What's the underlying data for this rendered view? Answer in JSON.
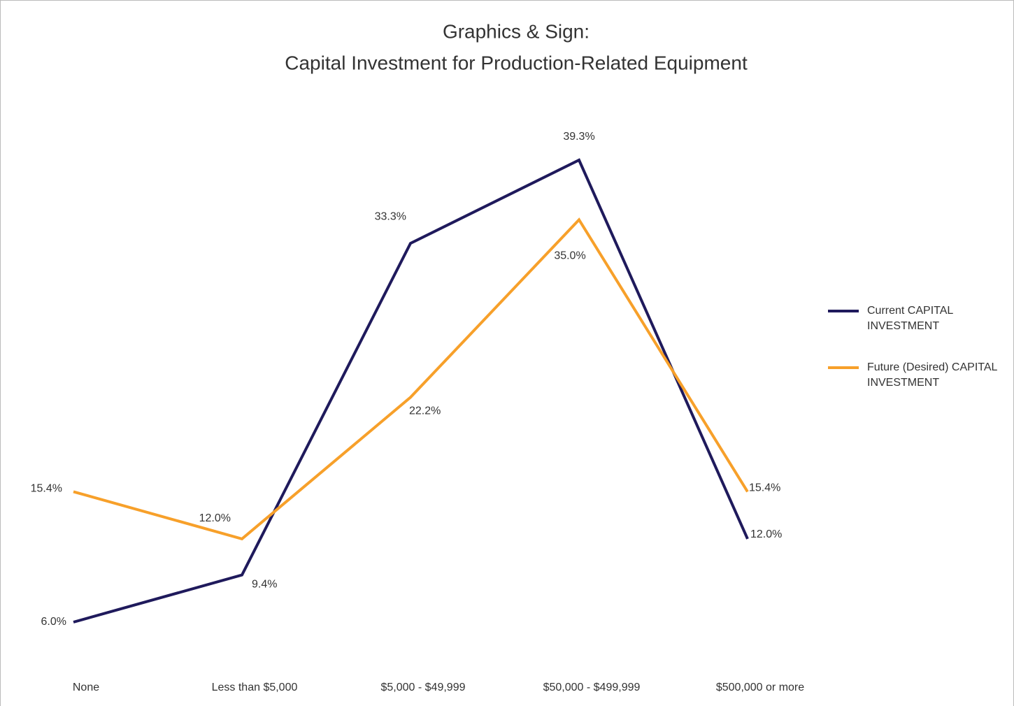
{
  "chart_data": {
    "type": "line",
    "title": [
      "Graphics & Sign:",
      "Capital Investment for Production-Related Equipment"
    ],
    "categories": [
      "None",
      "Less than $5,000",
      "$5,000 - $49,999",
      "$50,000 - $499,999",
      "$500,000 or more"
    ],
    "series": [
      {
        "name": "Current CAPITAL INVESTMENT",
        "color": "#1f1a5c",
        "values": [
          6.0,
          9.4,
          33.3,
          39.3,
          12.0
        ],
        "value_labels": [
          "6.0%",
          "9.4%",
          "33.3%",
          "39.3%",
          "12.0%"
        ]
      },
      {
        "name": "Future (Desired) CAPITAL INVESTMENT",
        "color": "#f7a02a",
        "values": [
          15.4,
          12.0,
          22.2,
          35.0,
          15.4
        ],
        "value_labels": [
          "15.4%",
          "12.0%",
          "22.2%",
          "35.0%",
          "15.4%"
        ]
      }
    ],
    "legend": "right"
  }
}
